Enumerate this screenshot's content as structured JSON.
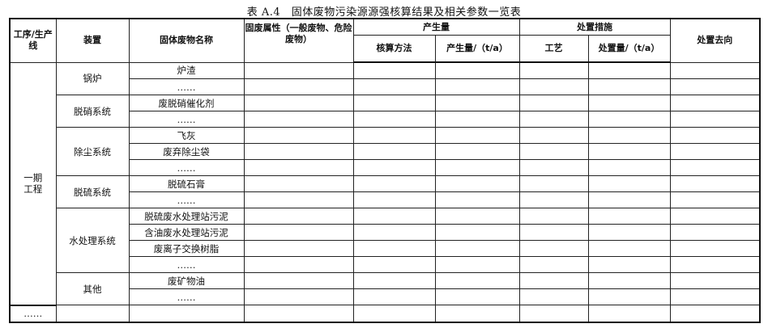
{
  "title": "表 A.4　固体废物污染源源强核算结果及相关参数一览表",
  "headers": {
    "process_line": "工序/生产线",
    "device": "装置",
    "waste_name": "固体废物名称",
    "waste_property": "固废属性（一般废物、危险废物）",
    "generation": "产生量",
    "calc_method": "核算方法",
    "generation_amount": "产生量/（t/a）",
    "disposal_measures": "处置措施",
    "process": "工艺",
    "disposal_amount": "处置量/（t/a）",
    "disposal_destination": "处置去向"
  },
  "process_line": "一期工程",
  "groups": [
    {
      "device": "锅炉",
      "items": [
        "炉渣",
        "……"
      ]
    },
    {
      "device": "脱硝系统",
      "items": [
        "废脱硝催化剂",
        "……"
      ]
    },
    {
      "device": "除尘系统",
      "items": [
        "飞灰",
        "废弃除尘袋",
        "……"
      ]
    },
    {
      "device": "脱硫系统",
      "items": [
        "脱硫石膏",
        "……"
      ]
    },
    {
      "device": "水处理系统",
      "items": [
        "脱硫废水处理站污泥",
        "含油废水处理站污泥",
        "废离子交换树脂",
        "……"
      ]
    },
    {
      "device": "其他",
      "items": [
        "废矿物油",
        "……"
      ]
    }
  ],
  "last_row_label": "……"
}
